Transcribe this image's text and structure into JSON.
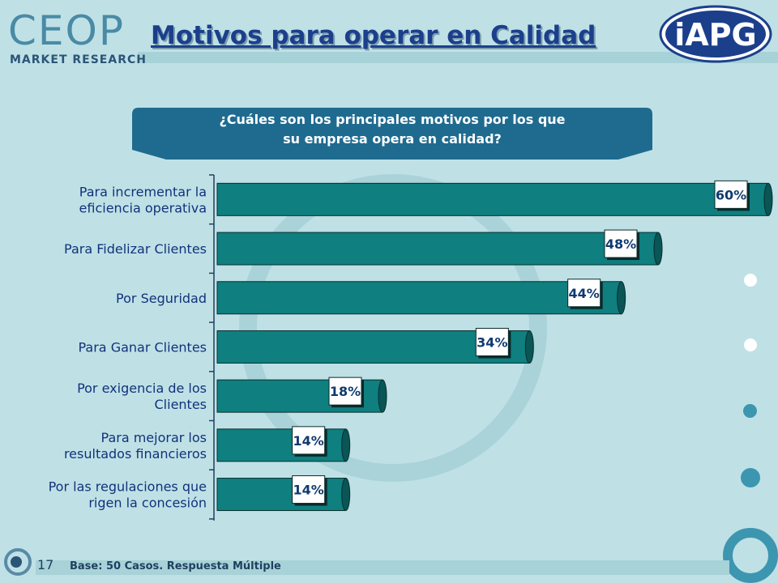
{
  "header": {
    "logo_left_word": "CEOP",
    "logo_left_sub": "MARKET RESEARCH",
    "logo_right_text": "iAPG",
    "title": "Motivos para operar en Calidad"
  },
  "question": {
    "line1": "¿Cuáles son los principales motivos por los que",
    "line2": "su empresa opera en calidad?"
  },
  "chart_data": {
    "type": "bar",
    "orientation": "horizontal",
    "categories": [
      [
        "Para incrementar la",
        "eficiencia operativa"
      ],
      [
        "Para Fidelizar Clientes"
      ],
      [
        "Por Seguridad"
      ],
      [
        "Para Ganar Clientes"
      ],
      [
        "Por exigencia de los",
        "Clientes"
      ],
      [
        "Para mejorar los",
        "resultados financieros"
      ],
      [
        "Por las regulaciones que",
        "rigen la concesión"
      ]
    ],
    "values": [
      60,
      48,
      44,
      34,
      18,
      14,
      14
    ],
    "data_labels": [
      "60%",
      "48%",
      "44%",
      "34%",
      "18%",
      "14%",
      "14%"
    ],
    "xlim": [
      0,
      60
    ],
    "colors": {
      "bar": "#0f7f7f",
      "bar_dark": "#0a5555",
      "label_box": "#ffffff",
      "label_text": "#0f3a70"
    }
  },
  "footer": {
    "page_number": "17",
    "note": "Base: 50 Casos. Respuesta Múltiple"
  },
  "colors": {
    "background": "#bfe1e6",
    "title": "#1c3f8c",
    "question_box": "#1f6b90"
  }
}
